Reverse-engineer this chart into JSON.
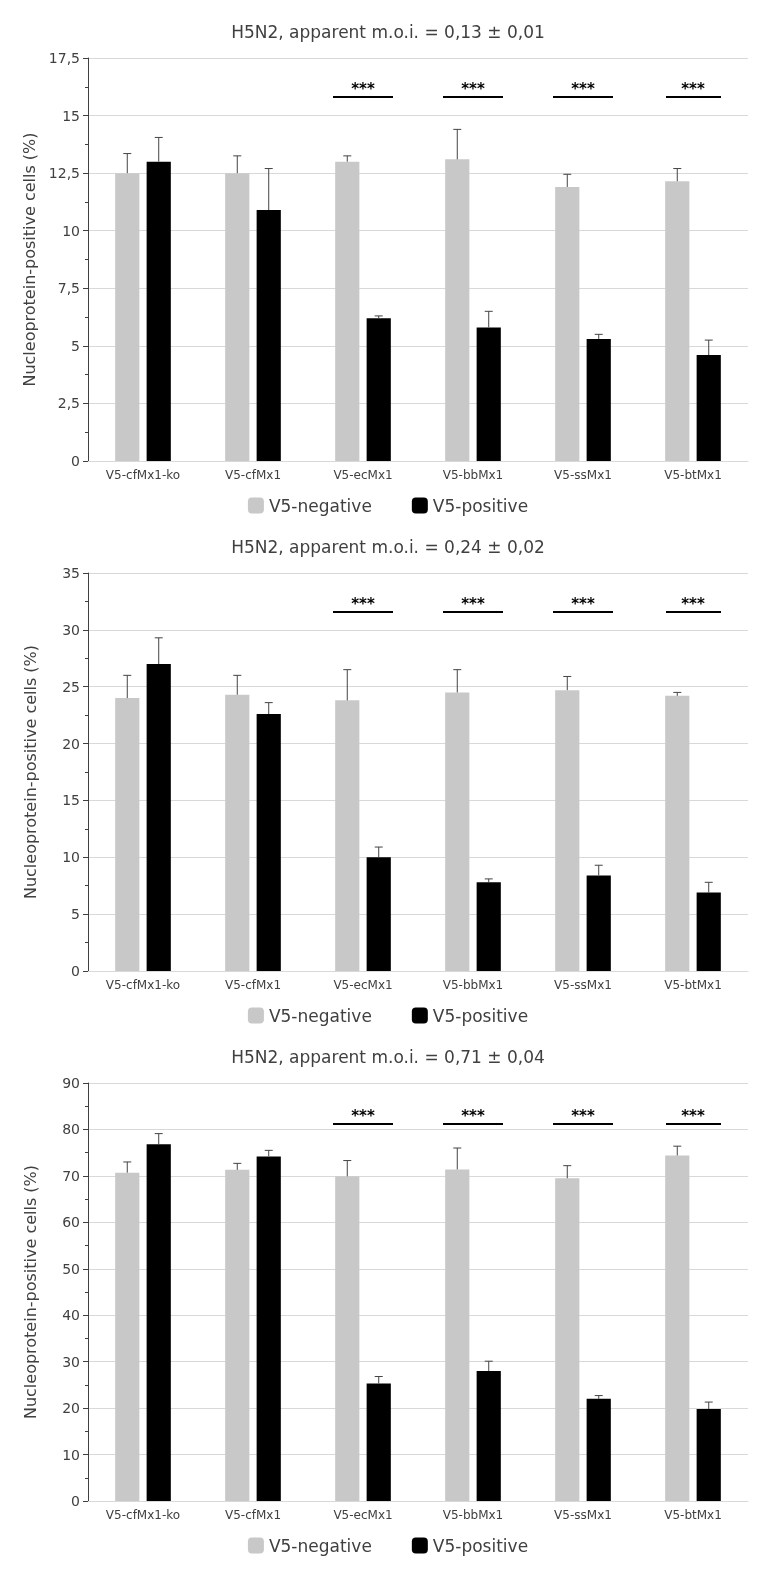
{
  "chart_data": [
    {
      "type": "bar",
      "title": "H5N2, apparent m.o.i. = 0,13 ± 0,01",
      "ylabel": "Nucleoprotein-positive cells (%)",
      "categories": [
        "V5-cfMx1-ko",
        "V5-cfMx1",
        "V5-ecMx1",
        "V5-bbMx1",
        "V5-ssMx1",
        "V5-btMx1"
      ],
      "series": [
        {
          "name": "V5-negative",
          "color": "#c8c8c8",
          "values": [
            12.5,
            12.5,
            13.0,
            13.1,
            11.9,
            12.15
          ],
          "errors": [
            [
              12.5,
              13.35
            ],
            [
              12.5,
              13.25
            ],
            [
              13.0,
              13.25
            ],
            [
              13.1,
              14.4
            ],
            [
              11.9,
              12.45
            ],
            [
              12.15,
              12.7
            ]
          ]
        },
        {
          "name": "V5-positive",
          "color": "#000000",
          "values": [
            13.0,
            10.9,
            6.2,
            5.8,
            5.3,
            4.6
          ],
          "errors": [
            [
              13.0,
              14.05
            ],
            [
              10.9,
              12.7
            ],
            [
              6.2,
              6.3
            ],
            [
              5.8,
              6.5
            ],
            [
              5.3,
              5.5
            ],
            [
              4.6,
              5.25
            ]
          ]
        }
      ],
      "ylim": [
        0,
        17.5
      ],
      "yticks": [
        0,
        {
          "value": 2.5,
          "label": "2,5"
        },
        5,
        {
          "value": 7.5,
          "label": "7,5"
        },
        10,
        {
          "value": 12.5,
          "label": "12,5"
        },
        15,
        {
          "value": 17.5,
          "label": "17,5"
        }
      ],
      "grid": "y",
      "legend": "bottom",
      "annotations": [
        "***",
        "***",
        "***",
        "***"
      ]
    },
    {
      "type": "bar",
      "title": "H5N2, apparent m.o.i. = 0,24 ± 0,02",
      "ylabel": "Nucleoprotein-positive cells (%)",
      "categories": [
        "V5-cfMx1-ko",
        "V5-cfMx1",
        "V5-ecMx1",
        "V5-bbMx1",
        "V5-ssMx1",
        "V5-btMx1"
      ],
      "series": [
        {
          "name": "V5-negative",
          "color": "#c8c8c8",
          "values": [
            24.0,
            24.3,
            23.8,
            24.5,
            24.7,
            24.2
          ],
          "errors": [
            [
              24.0,
              26.0
            ],
            [
              24.3,
              26.0
            ],
            [
              23.8,
              26.5
            ],
            [
              24.5,
              26.5
            ],
            [
              24.7,
              25.9
            ],
            [
              24.2,
              24.5
            ]
          ]
        },
        {
          "name": "V5-positive",
          "color": "#000000",
          "values": [
            27.0,
            22.6,
            10.0,
            7.8,
            8.4,
            6.9
          ],
          "errors": [
            [
              27.0,
              29.3
            ],
            [
              22.6,
              23.6
            ],
            [
              10.0,
              10.9
            ],
            [
              7.8,
              8.1
            ],
            [
              8.4,
              9.3
            ],
            [
              6.9,
              7.8
            ]
          ]
        }
      ],
      "ylim": [
        0,
        35
      ],
      "yticks": [
        0,
        5,
        10,
        15,
        20,
        25,
        30,
        35
      ],
      "grid": "y",
      "legend": "bottom",
      "annotations": [
        "***",
        "***",
        "***",
        "***"
      ]
    },
    {
      "type": "bar",
      "title": "H5N2, apparent m.o.i. = 0,71 ± 0,04",
      "ylabel": "Nucleoprotein-positive cells (%)",
      "categories": [
        "V5-cfMx1-ko",
        "V5-cfMx1",
        "V5-ecMx1",
        "V5-bbMx1",
        "V5-ssMx1",
        "V5-btMx1"
      ],
      "series": [
        {
          "name": "V5-negative",
          "color": "#c8c8c8",
          "values": [
            70.7,
            71.3,
            69.9,
            71.4,
            69.5,
            74.4
          ],
          "errors": [
            [
              70.7,
              73.0
            ],
            [
              71.3,
              72.7
            ],
            [
              69.9,
              73.3
            ],
            [
              71.4,
              76.0
            ],
            [
              69.5,
              72.2
            ],
            [
              74.4,
              76.4
            ]
          ]
        },
        {
          "name": "V5-positive",
          "color": "#000000",
          "values": [
            76.8,
            74.2,
            25.3,
            28.0,
            22.0,
            19.8
          ],
          "errors": [
            [
              76.8,
              79.1
            ],
            [
              74.2,
              75.5
            ],
            [
              25.3,
              26.8
            ],
            [
              28.0,
              30.1
            ],
            [
              22.0,
              22.7
            ],
            [
              19.8,
              21.3
            ]
          ]
        }
      ],
      "ylim": [
        0,
        90
      ],
      "yticks": [
        0,
        10,
        20,
        30,
        40,
        50,
        60,
        70,
        80,
        90
      ],
      "grid": "y",
      "legend": "bottom",
      "annotations": [
        "***",
        "***",
        "***",
        "***"
      ]
    }
  ]
}
